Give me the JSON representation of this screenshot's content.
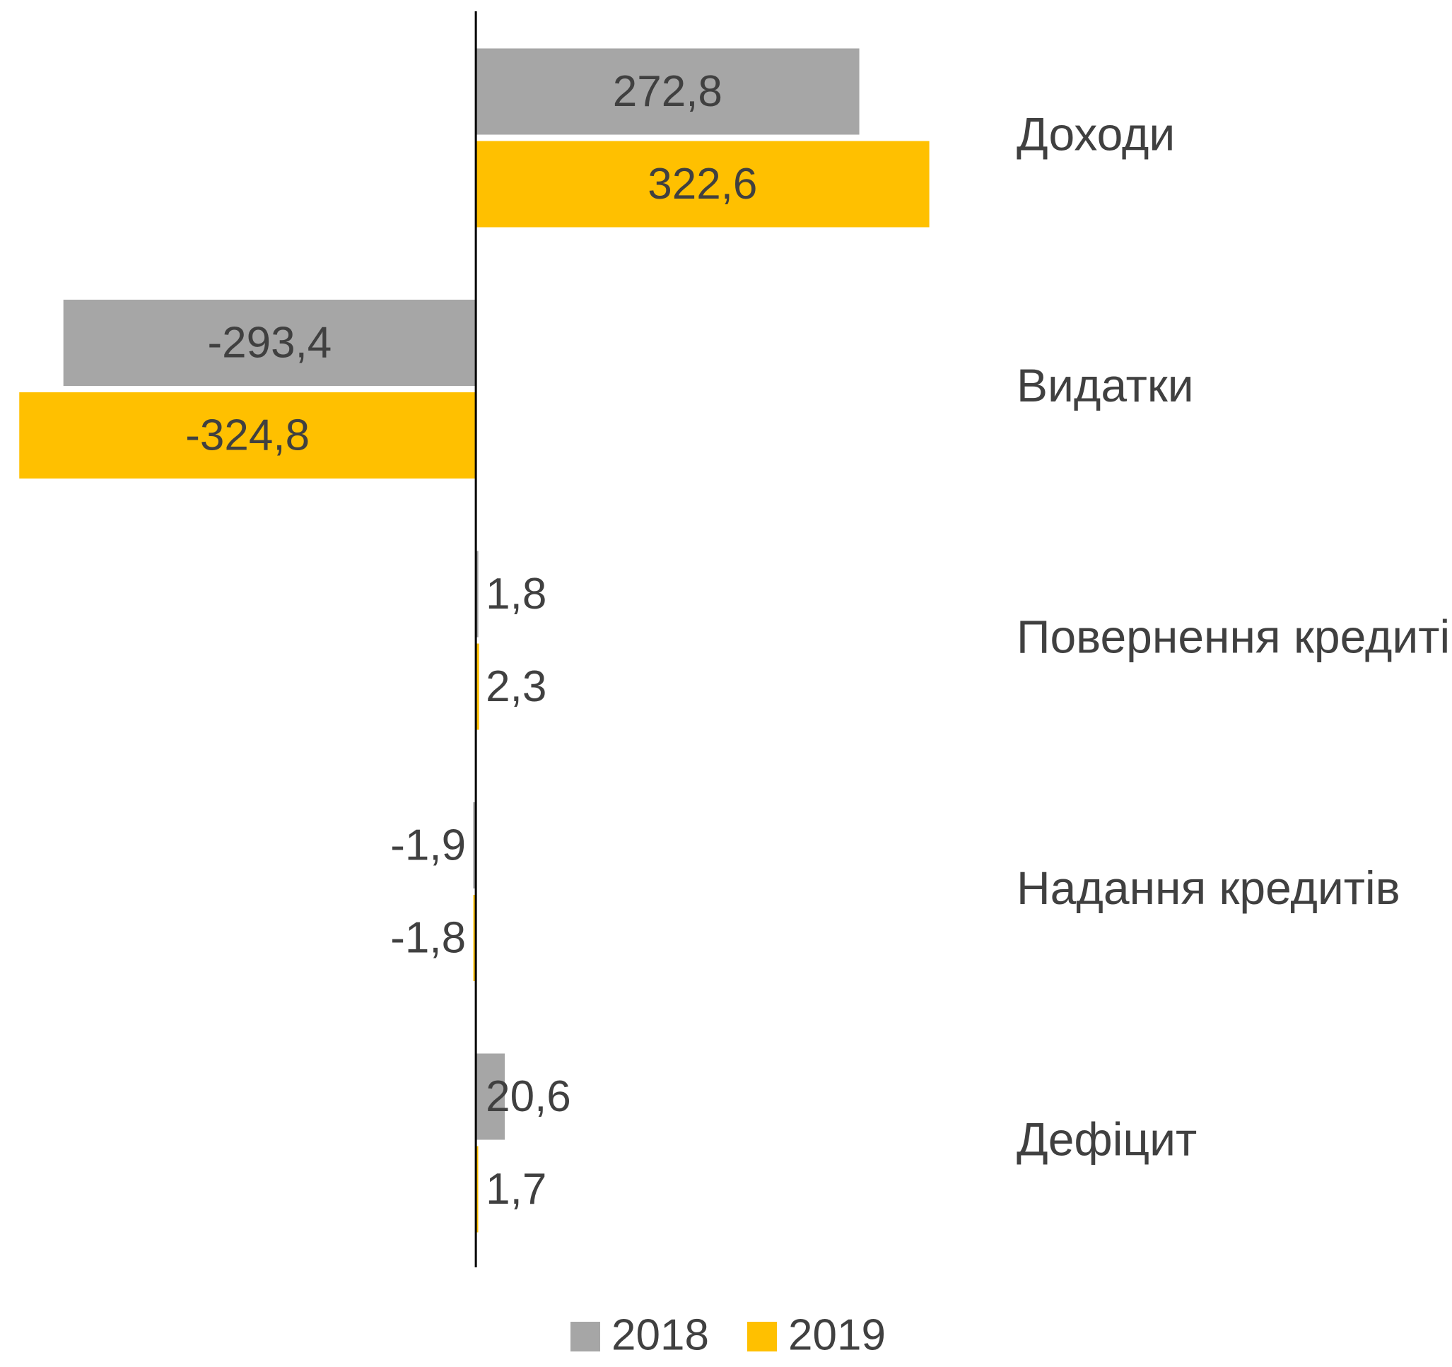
{
  "chart_data": {
    "type": "bar",
    "orientation": "horizontal",
    "categories": [
      "Доходи",
      "Видатки",
      "Повернення кредитів",
      "Надання кредитів",
      "Дефіцит"
    ],
    "series": [
      {
        "name": "2018",
        "color": "#a6a6a6",
        "values": [
          272.8,
          -293.4,
          1.8,
          -1.9,
          20.6
        ],
        "value_labels": [
          "272,8",
          "-293,4",
          "1,8",
          "-1,9",
          "20,6"
        ]
      },
      {
        "name": "2019",
        "color": "#ffc000",
        "values": [
          322.6,
          -324.8,
          2.3,
          -1.8,
          1.7
        ],
        "value_labels": [
          "322,6",
          "-324,8",
          "2,3",
          "-1,8",
          "1,7"
        ]
      }
    ],
    "xlim": [
      -338,
      357
    ],
    "legend": "bottom"
  }
}
